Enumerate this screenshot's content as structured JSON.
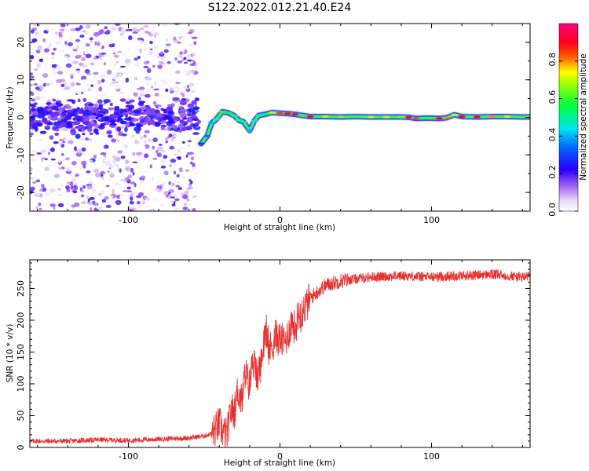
{
  "title": "S122.2022.012.21.40.E24",
  "chart_data": [
    {
      "type": "heatmap",
      "xlabel": "Height of straight line (km)",
      "ylabel": "Frequency (Hz)",
      "xlim": [
        -165,
        165
      ],
      "ylim": [
        -25,
        25
      ],
      "xticks": [
        -100,
        0,
        100
      ],
      "yticks": [
        -20,
        -10,
        0,
        10,
        20
      ],
      "grid": false,
      "colorbar": {
        "label": "Normalized spectral amplitude",
        "range": [
          0,
          1
        ],
        "ticks": [
          0.0,
          0.2,
          0.4,
          0.6,
          0.8
        ],
        "tick_labels": [
          "0.0",
          "0.2",
          "0.4",
          "0.6",
          "0.8"
        ],
        "colormap": "white-lavender-violet-blue-cyan-green-yellow-red-magenta"
      },
      "ridge": {
        "x": [
          -52,
          -48,
          -45,
          -42,
          -38,
          -34,
          -30,
          -27,
          -24,
          -20,
          -17,
          -14,
          -10,
          -5,
          0,
          5,
          10,
          15,
          20,
          30,
          40,
          50,
          60,
          70,
          80,
          85,
          90,
          95,
          100,
          105,
          110,
          115,
          120,
          130,
          140,
          150,
          160,
          165
        ],
        "y": [
          -7,
          -5,
          -1.5,
          -0.5,
          1.5,
          1.2,
          0.4,
          -0.8,
          -1.2,
          -3.5,
          -1,
          0.5,
          0.8,
          1.3,
          1.1,
          1.0,
          0.8,
          0.5,
          0.2,
          0.2,
          0.1,
          0.2,
          0.1,
          0.1,
          0.1,
          0.0,
          -0.3,
          -0.2,
          -0.2,
          -0.3,
          -0.1,
          0.7,
          0.2,
          0.1,
          0.2,
          0.2,
          0.1,
          0.1
        ],
        "amplitude": [
          0.3,
          0.35,
          0.4,
          0.45,
          0.6,
          0.55,
          0.5,
          0.5,
          0.5,
          0.4,
          0.45,
          0.5,
          0.55,
          0.7,
          0.85,
          0.9,
          0.9,
          0.6,
          0.9,
          0.7,
          0.65,
          0.6,
          0.7,
          0.7,
          0.65,
          0.9,
          0.85,
          0.6,
          0.6,
          0.9,
          0.8,
          0.7,
          0.9,
          0.9,
          0.8,
          0.7,
          0.6,
          0.6
        ]
      },
      "noise_region": {
        "x_range": [
          -165,
          -55
        ],
        "freq_range": [
          -25,
          25
        ],
        "amplitude_range": [
          0,
          0.3
        ]
      }
    },
    {
      "type": "line",
      "xlabel": "Height of straight line (km)",
      "ylabel": "SNR (10 * v/v)",
      "xlim": [
        -165,
        165
      ],
      "ylim": [
        0,
        295
      ],
      "xticks": [
        -100,
        0,
        100
      ],
      "yticks": [
        0,
        50,
        100,
        150,
        200,
        250
      ],
      "grid": false,
      "series": [
        {
          "color": "#e83030",
          "x": [
            -165,
            -140,
            -120,
            -100,
            -80,
            -60,
            -50,
            -45,
            -42,
            -40,
            -38,
            -35,
            -32,
            -30,
            -28,
            -25,
            -23,
            -20,
            -18,
            -15,
            -12,
            -10,
            -8,
            -5,
            -3,
            0,
            3,
            5,
            8,
            10,
            12,
            15,
            18,
            20,
            25,
            30,
            40,
            50,
            60,
            80,
            100,
            120,
            140,
            160,
            165
          ],
          "y": [
            10,
            10,
            12,
            11,
            13,
            15,
            18,
            22,
            30,
            38,
            25,
            20,
            60,
            55,
            90,
            70,
            120,
            95,
            140,
            110,
            135,
            190,
            150,
            160,
            175,
            170,
            165,
            175,
            200,
            185,
            210,
            215,
            225,
            235,
            245,
            255,
            262,
            265,
            268,
            270,
            268,
            270,
            272,
            268,
            270
          ]
        }
      ]
    }
  ]
}
